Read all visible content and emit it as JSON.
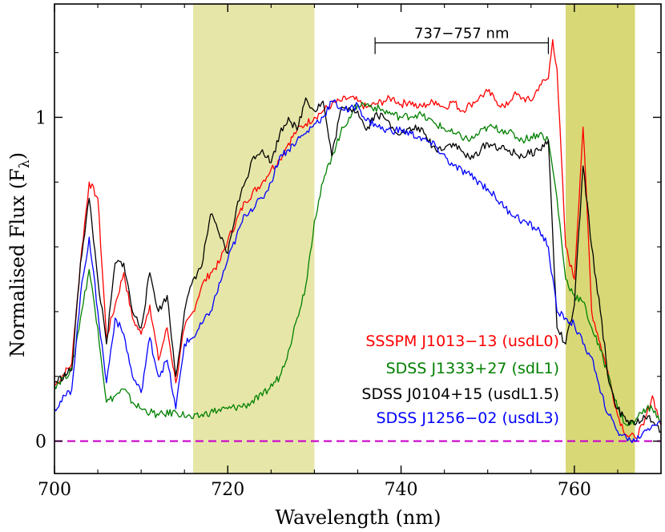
{
  "chart_data": {
    "type": "line",
    "title": "",
    "xlabel": "Wavelength (nm)",
    "ylabel_main": "Normalised Flux  (F",
    "ylabel_sub": "λ",
    "ylabel_close": ")",
    "xlim": [
      700,
      770
    ],
    "ylim": [
      -0.1,
      1.35
    ],
    "xticks": [
      700,
      720,
      740,
      760
    ],
    "xtick_labels": [
      "700",
      "720",
      "740",
      "760"
    ],
    "yticks": [
      0,
      1
    ],
    "ytick_labels": [
      "0",
      "1"
    ],
    "grid": false,
    "legend_position": "bottom-right",
    "bands": [
      {
        "x0": 716,
        "x1": 730,
        "color": "#e6e6a8"
      },
      {
        "x0": 759,
        "x1": 767,
        "color": "#d8d877"
      }
    ],
    "annotation": {
      "label": "737−757 nm",
      "x0": 737,
      "x1": 757,
      "y": 1.23
    },
    "zero_line": {
      "y": 0,
      "color": "#cc00cc"
    },
    "series": [
      {
        "name": "SSSPM J1013−13 (usdL0)",
        "color": "#ff0000",
        "x": [
          700,
          702,
          703,
          704,
          705,
          706,
          707,
          708,
          709,
          710,
          711,
          712,
          713,
          714,
          715,
          716,
          717,
          718,
          719,
          720,
          722,
          724,
          725,
          726,
          727,
          728,
          729,
          730,
          731,
          732,
          733,
          734,
          735,
          736,
          737,
          738,
          739,
          740,
          741,
          742,
          743,
          744,
          745,
          746,
          747,
          748,
          749,
          750,
          751,
          752,
          753,
          754,
          755,
          756,
          757,
          757.5,
          758,
          759,
          760,
          761,
          761.5,
          762,
          763,
          764,
          765,
          766,
          767,
          768,
          769,
          770
        ],
        "y": [
          0.17,
          0.24,
          0.55,
          0.8,
          0.75,
          0.32,
          0.42,
          0.52,
          0.38,
          0.33,
          0.42,
          0.25,
          0.35,
          0.18,
          0.35,
          0.4,
          0.48,
          0.52,
          0.55,
          0.62,
          0.74,
          0.8,
          0.84,
          0.87,
          0.92,
          0.96,
          0.98,
          1.0,
          1.02,
          1.04,
          1.05,
          1.06,
          1.05,
          1.03,
          1.04,
          1.05,
          1.06,
          1.04,
          1.05,
          1.03,
          1.04,
          1.05,
          1.03,
          1.05,
          1.02,
          1.04,
          1.06,
          1.08,
          1.05,
          1.03,
          1.07,
          1.06,
          1.05,
          1.1,
          1.12,
          1.24,
          1.15,
          0.6,
          0.5,
          0.97,
          0.7,
          0.4,
          0.3,
          0.2,
          0.08,
          0.02,
          0.01,
          0.05,
          0.14,
          0.05
        ]
      },
      {
        "name": "SDSS J1333+27 (sdL1)",
        "color": "#008000",
        "x": [
          700,
          702,
          703,
          704,
          705,
          706,
          707,
          708,
          709,
          710,
          712,
          714,
          716,
          718,
          720,
          722,
          724,
          726,
          727,
          728,
          729,
          730,
          731,
          732,
          733,
          734,
          735,
          736,
          738,
          740,
          742,
          744,
          746,
          748,
          750,
          752,
          754,
          756,
          757,
          758,
          759,
          760,
          761,
          762,
          763,
          764,
          765,
          766,
          767,
          768,
          769,
          770
        ],
        "y": [
          0.17,
          0.22,
          0.38,
          0.53,
          0.35,
          0.12,
          0.14,
          0.16,
          0.12,
          0.1,
          0.08,
          0.09,
          0.07,
          0.09,
          0.1,
          0.11,
          0.14,
          0.2,
          0.28,
          0.38,
          0.48,
          0.68,
          0.8,
          0.88,
          0.95,
          1.0,
          1.04,
          1.04,
          1.02,
          1.0,
          1.01,
          0.98,
          0.95,
          0.93,
          0.97,
          0.96,
          0.93,
          0.95,
          0.93,
          0.75,
          0.5,
          0.45,
          0.43,
          0.35,
          0.28,
          0.2,
          0.1,
          0.05,
          0.06,
          0.1,
          0.1,
          0.06
        ]
      },
      {
        "name": "SDSS J0104+15 (usdL1.5)",
        "color": "#000000",
        "x": [
          700,
          702,
          703,
          704,
          705,
          706,
          707,
          708,
          709,
          710,
          711,
          712,
          713,
          714,
          715,
          716,
          717,
          718,
          719,
          720,
          721,
          722,
          723,
          724,
          725,
          726,
          727,
          728,
          729,
          730,
          731,
          732,
          733,
          734,
          735,
          736,
          737,
          738,
          739,
          740,
          742,
          744,
          746,
          748,
          750,
          752,
          754,
          756,
          757,
          758,
          759,
          760,
          761,
          762,
          763,
          764,
          765,
          766,
          767,
          768,
          769,
          770
        ],
        "y": [
          0.18,
          0.22,
          0.55,
          0.75,
          0.5,
          0.3,
          0.55,
          0.55,
          0.4,
          0.35,
          0.52,
          0.4,
          0.45,
          0.2,
          0.4,
          0.5,
          0.54,
          0.7,
          0.64,
          0.58,
          0.72,
          0.8,
          0.88,
          0.9,
          0.86,
          0.95,
          1.0,
          0.96,
          1.06,
          1.02,
          1.05,
          0.88,
          1.02,
          1.03,
          1.02,
          0.96,
          1.01,
          1.0,
          0.97,
          0.95,
          0.97,
          0.9,
          0.92,
          0.87,
          0.92,
          0.9,
          0.88,
          0.9,
          0.93,
          0.35,
          0.3,
          0.42,
          0.85,
          0.6,
          0.4,
          0.18,
          0.1,
          0.06,
          0.05,
          0.08,
          0.06,
          0.03
        ]
      },
      {
        "name": "SDSS J1256−02 (usdL3)",
        "color": "#0000ff",
        "x": [
          700,
          702,
          703,
          704,
          705,
          706,
          707,
          708,
          709,
          710,
          711,
          712,
          713,
          714,
          715,
          716,
          718,
          720,
          722,
          724,
          725,
          726,
          727,
          728,
          729,
          730,
          731,
          732,
          733,
          734,
          735,
          736,
          737,
          738,
          740,
          742,
          744,
          746,
          748,
          750,
          752,
          754,
          756,
          757,
          758,
          759,
          760,
          761,
          762,
          763,
          764,
          765,
          766,
          767,
          768,
          769,
          770
        ],
        "y": [
          0.1,
          0.16,
          0.45,
          0.63,
          0.4,
          0.18,
          0.38,
          0.33,
          0.2,
          0.15,
          0.32,
          0.2,
          0.25,
          0.1,
          0.3,
          0.32,
          0.4,
          0.56,
          0.7,
          0.75,
          0.8,
          0.88,
          0.9,
          0.93,
          0.95,
          0.98,
          1.0,
          1.05,
          1.03,
          1.02,
          1.04,
          0.99,
          0.98,
          0.96,
          0.96,
          0.94,
          0.91,
          0.85,
          0.82,
          0.78,
          0.72,
          0.68,
          0.65,
          0.6,
          0.4,
          0.38,
          0.36,
          0.3,
          0.26,
          0.15,
          0.08,
          0.03,
          0.01,
          0.0,
          0.03,
          0.05,
          0.06
        ]
      }
    ]
  }
}
